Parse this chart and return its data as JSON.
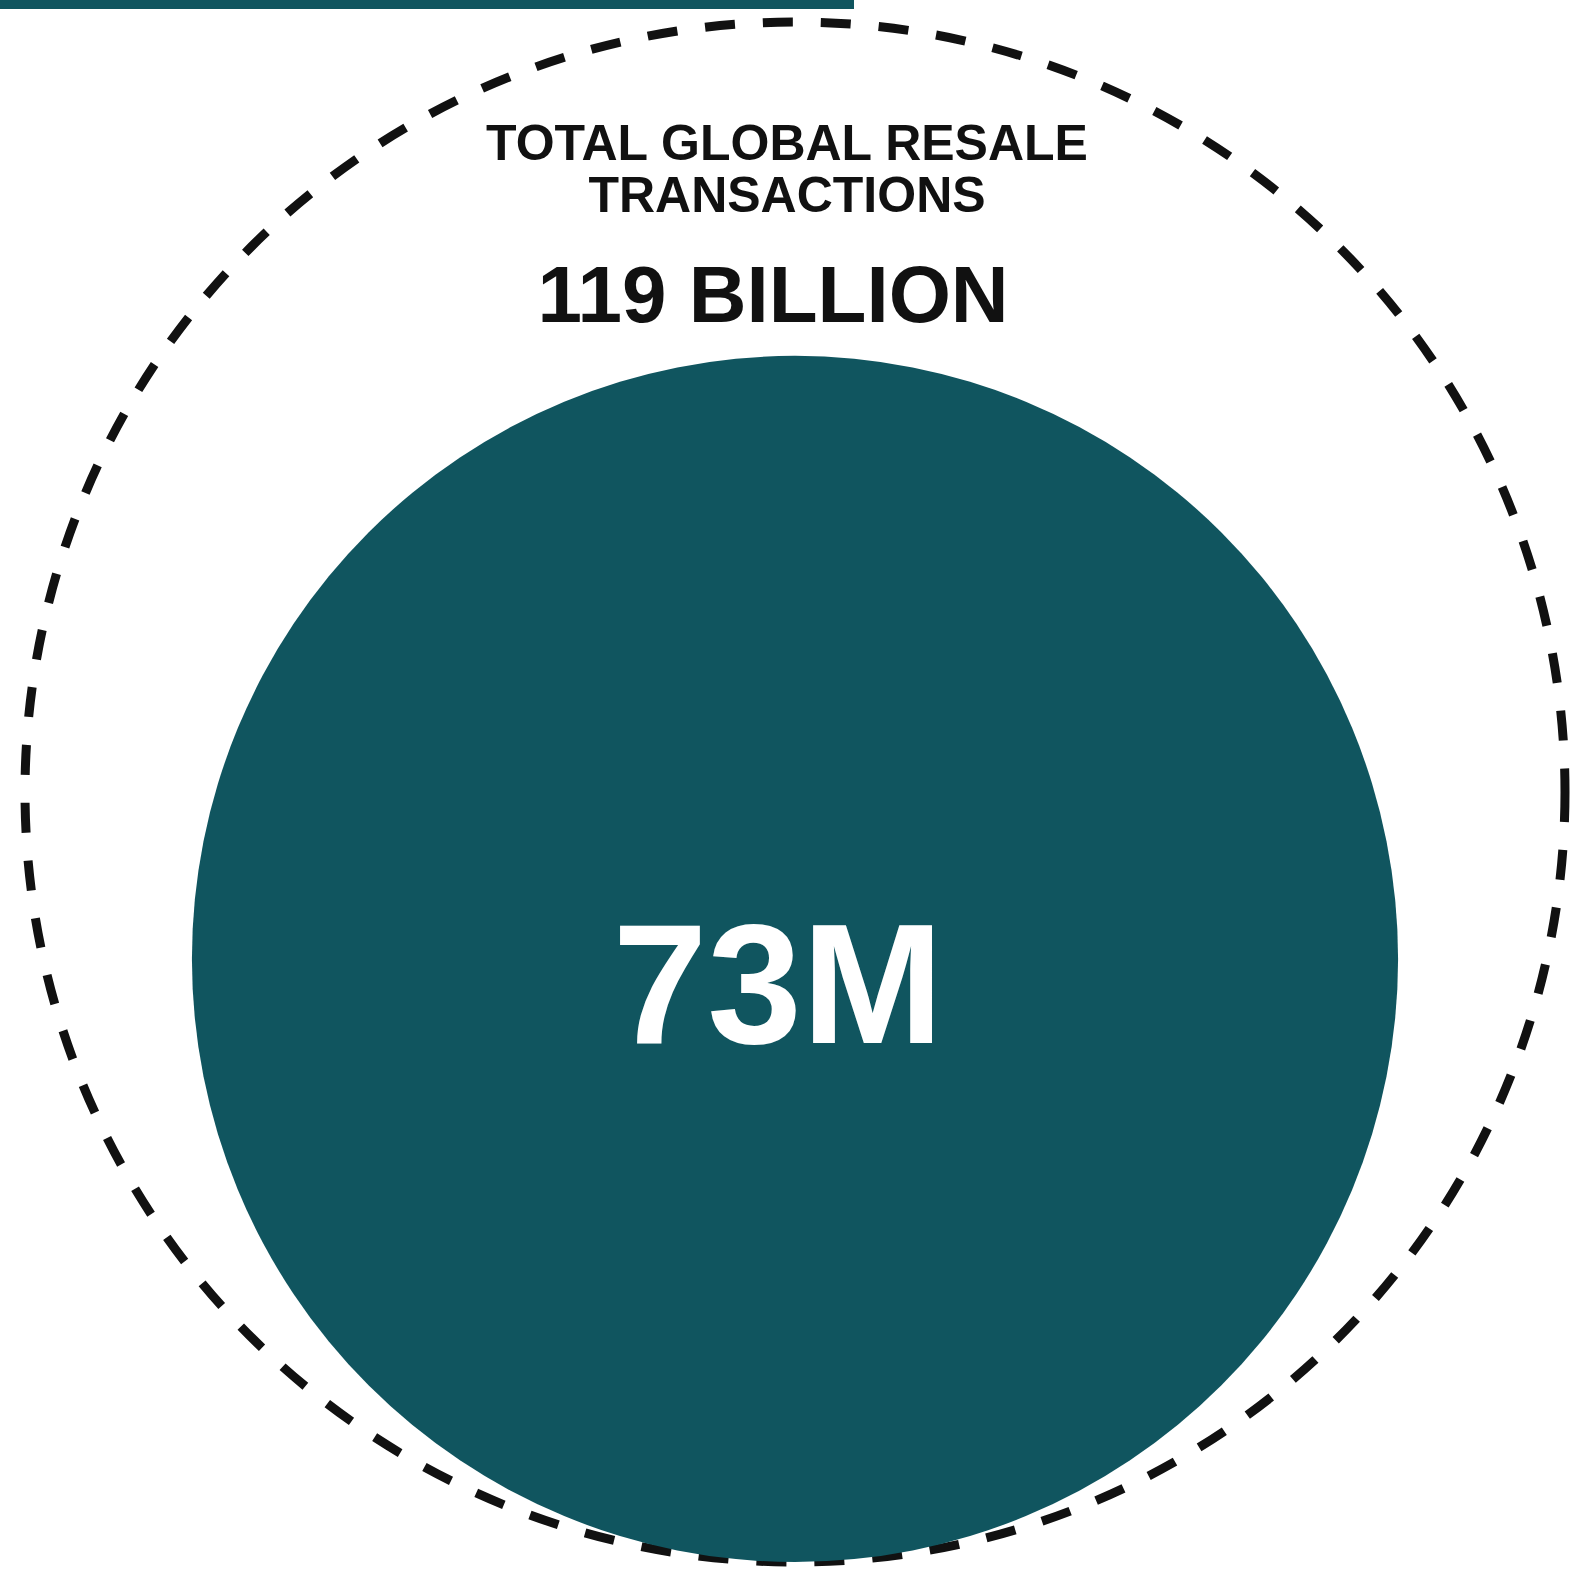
{
  "chart_data": {
    "type": "other",
    "title": "TOTAL GLOBAL RESALE TRANSACTIONS",
    "values": [
      119,
      73
    ],
    "value_labels": [
      "119 BILLION",
      "73M"
    ],
    "colors": [
      "#111111",
      "#10555f"
    ]
  }
}
